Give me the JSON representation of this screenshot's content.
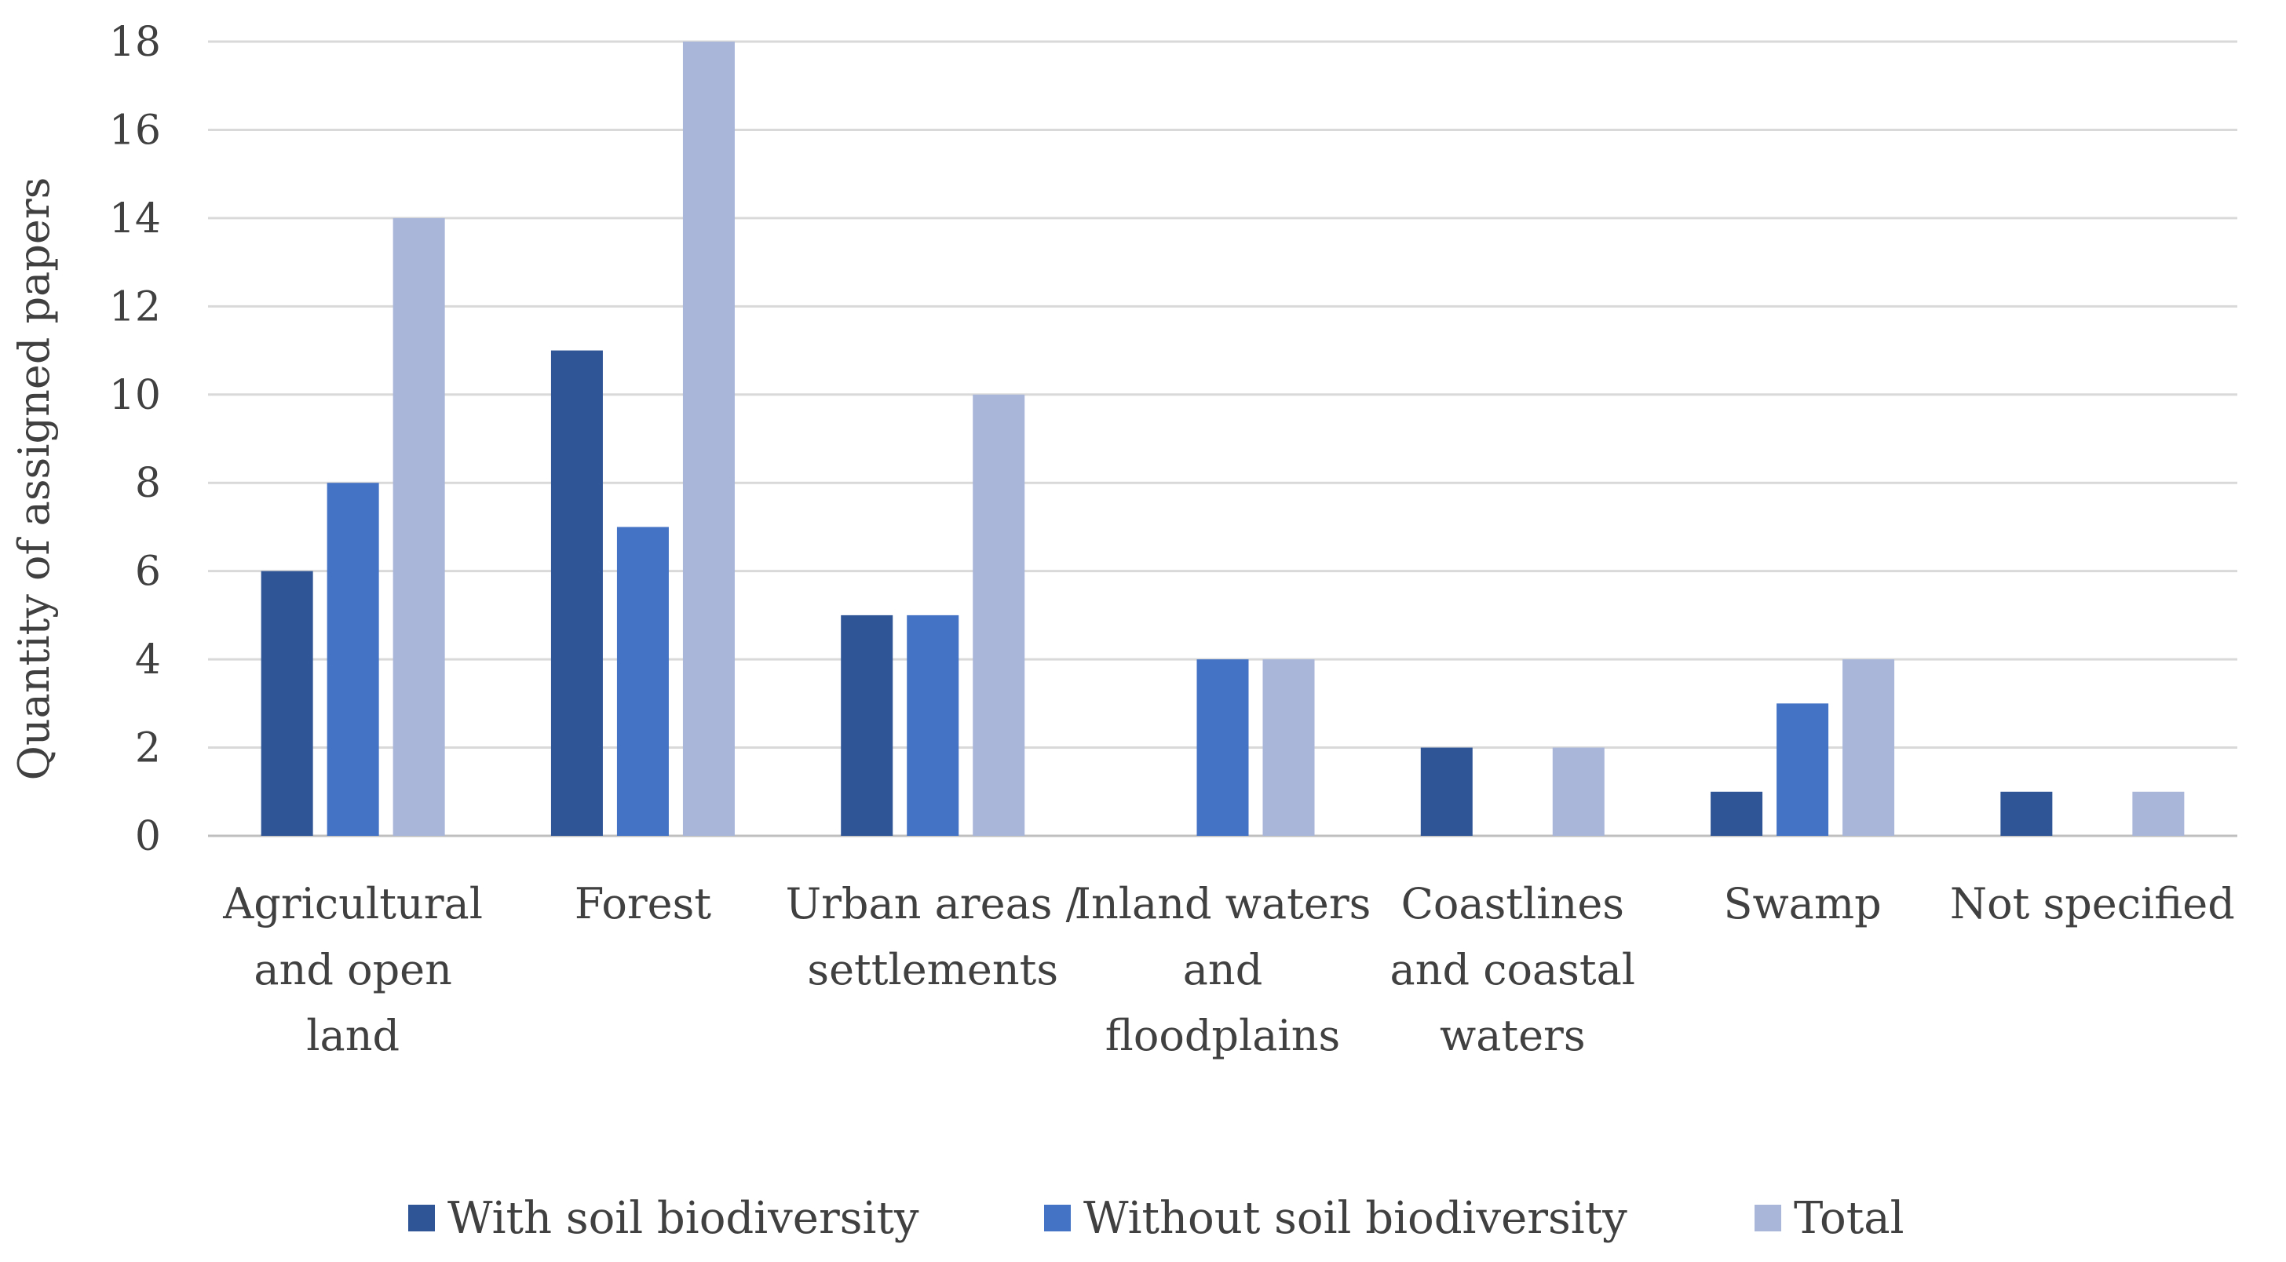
{
  "chart_data": {
    "type": "bar",
    "title": "",
    "xlabel": "",
    "ylabel": "Quantity of assigned papers",
    "ylim": [
      0,
      18
    ],
    "yticks": [
      0,
      2,
      4,
      6,
      8,
      10,
      12,
      14,
      16,
      18
    ],
    "grid": true,
    "legend_position": "bottom",
    "categories": [
      [
        "Agricultural",
        "and open",
        "land"
      ],
      [
        "Forest"
      ],
      [
        "Urban areas /",
        "settlements"
      ],
      [
        "Inland waters",
        "and",
        "floodplains"
      ],
      [
        "Coastlines",
        "and coastal",
        "waters"
      ],
      [
        "Swamp"
      ],
      [
        "Not specified"
      ]
    ],
    "series": [
      {
        "name": "With soil biodiversity",
        "color": "#2f5597",
        "values": [
          6,
          11,
          5,
          0,
          2,
          1,
          1
        ]
      },
      {
        "name": "Without soil biodiversity",
        "color": "#4472c4",
        "values": [
          8,
          7,
          5,
          4,
          0,
          3,
          0
        ]
      },
      {
        "name": "Total",
        "color": "#a9b6da",
        "values": [
          14,
          18,
          10,
          4,
          2,
          4,
          1
        ]
      }
    ]
  }
}
